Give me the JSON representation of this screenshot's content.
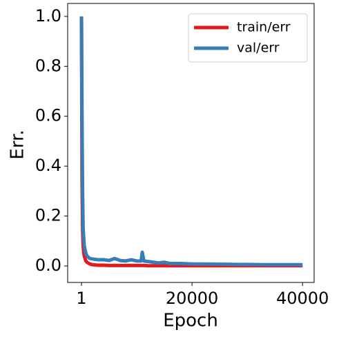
{
  "chart_data": {
    "type": "line",
    "xlabel": "Epoch",
    "ylabel": "Err.",
    "x": [
      1,
      100,
      200,
      300,
      500,
      800,
      1000,
      1500,
      2000,
      3000,
      4000,
      5000,
      6000,
      7000,
      8000,
      9000,
      10000,
      10800,
      11000,
      11300,
      12000,
      14000,
      15000,
      16000,
      18000,
      20000,
      22000,
      25000,
      28000,
      30000,
      33000,
      36000,
      40000
    ],
    "series": [
      {
        "name": "train/err",
        "color": "#e41a1c",
        "values": [
          1.0,
          0.35,
          0.15,
          0.08,
          0.04,
          0.02,
          0.015,
          0.008,
          0.005,
          0.003,
          0.003,
          0.002,
          0.002,
          0.002,
          0.002,
          0.002,
          0.002,
          0.002,
          0.002,
          0.002,
          0.001,
          0.001,
          0.001,
          0.001,
          0.001,
          0.001,
          0.001,
          0.001,
          0.001,
          0.001,
          0.001,
          0.001,
          0.001
        ]
      },
      {
        "name": "val/err",
        "color": "#377eb8",
        "values": [
          1.0,
          0.6,
          0.3,
          0.15,
          0.08,
          0.05,
          0.04,
          0.03,
          0.028,
          0.025,
          0.025,
          0.022,
          0.03,
          0.022,
          0.02,
          0.025,
          0.02,
          0.02,
          0.055,
          0.02,
          0.018,
          0.012,
          0.015,
          0.01,
          0.01,
          0.008,
          0.008,
          0.007,
          0.006,
          0.006,
          0.005,
          0.005,
          0.005
        ]
      }
    ],
    "xlim": [
      -2500,
      42100
    ],
    "ylim": [
      -0.066,
      1.052
    ],
    "xticks": [
      1,
      20000,
      40000
    ],
    "yticks": [
      {
        "value": 0,
        "label": "0.0"
      },
      {
        "value": 0.2,
        "label": "0.2"
      },
      {
        "value": 0.4,
        "label": "0.4"
      },
      {
        "value": 0.6,
        "label": "0.6"
      },
      {
        "value": 0.8,
        "label": "0.8"
      },
      {
        "value": 1,
        "label": "1.0"
      }
    ],
    "legend": "upper right"
  }
}
